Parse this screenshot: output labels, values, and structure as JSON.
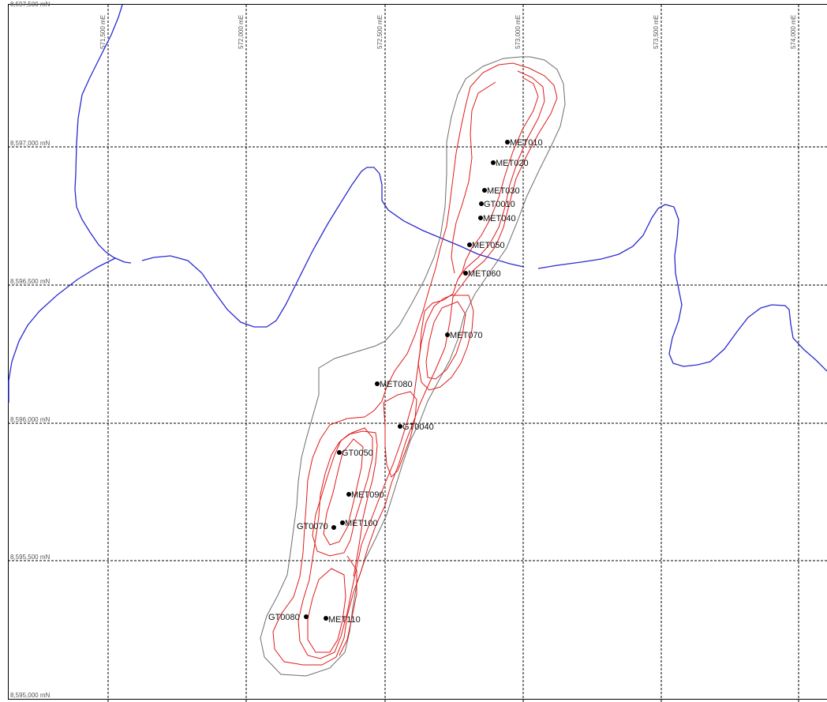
{
  "map": {
    "colors": {
      "grid": "#000000",
      "river": "#2b2bd0",
      "envelope": "#6e6e6e",
      "ore_outline": "#e01b1b",
      "point": "#000000"
    },
    "easting_labels": [
      "571,500 mE",
      "572,000 mE",
      "572,500 mE",
      "573,000 mE",
      "573,500 mE",
      "574,000 mE"
    ],
    "northing_labels": [
      "8,597,500 mN",
      "8,597,000 mN",
      "8,596,500 mN",
      "8,596,000 mN",
      "8,595,500 mN",
      "8,595,000 mN"
    ],
    "points": [
      {
        "label": "MET010",
        "label_side": "right"
      },
      {
        "label": "MET020",
        "label_side": "right"
      },
      {
        "label": "MET030",
        "label_side": "right"
      },
      {
        "label": "GT0010",
        "label_side": "right"
      },
      {
        "label": "MET040",
        "label_side": "right"
      },
      {
        "label": "MET050",
        "label_side": "right"
      },
      {
        "label": "MET060",
        "label_side": "right"
      },
      {
        "label": "MET070",
        "label_side": "right"
      },
      {
        "label": "MET080",
        "label_side": "right"
      },
      {
        "label": "GT0040",
        "label_side": "right"
      },
      {
        "label": "GT0050",
        "label_side": "right"
      },
      {
        "label": "MET090",
        "label_side": "right"
      },
      {
        "label": "MET100",
        "label_side": "right"
      },
      {
        "label": "GT0070",
        "label_side": "left"
      },
      {
        "label": "GT0080",
        "label_side": "left"
      },
      {
        "label": "MET110",
        "label_side": "right"
      }
    ]
  }
}
